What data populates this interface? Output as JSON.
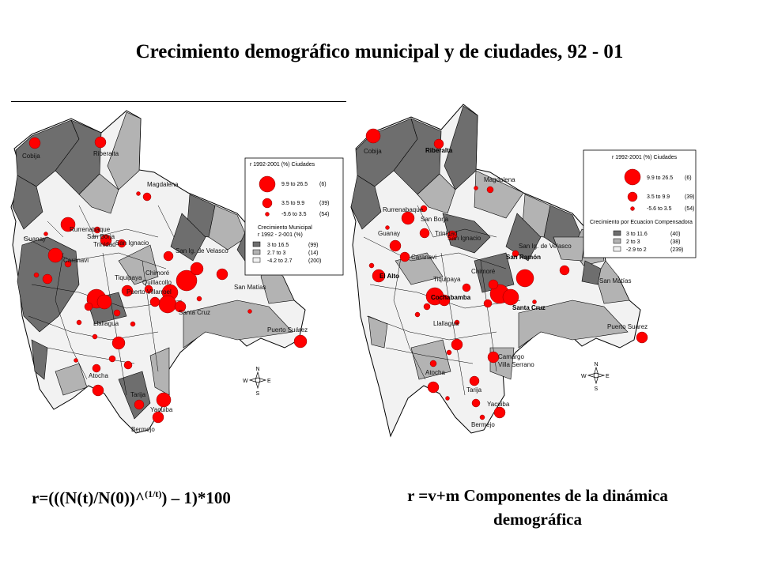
{
  "title": "Crecimiento demográfico municipal y de ciudades, 92 - 01",
  "formula": {
    "main": "r=(((N(t)/N(0))^",
    "exponent": "(1/t)",
    "tail": ") – 1)*100"
  },
  "components_caption": {
    "line1": "r =v+m Componentes de la dinámica",
    "line2": "demográfica"
  },
  "colors": {
    "dark": "#6e6e6e",
    "mid": "#b3b3b3",
    "light": "#f2f2f2",
    "dot": "#ff0000"
  },
  "map_left": {
    "cities": [
      "Cobija",
      "Riberalta",
      "Magdalena",
      "Rurrenabaque",
      "San Borja",
      "Guanay",
      "Trinidad",
      "San Ignacio",
      "Caranavi",
      "San Ig. de Velasco",
      "Chimoré",
      "Quillacollo",
      "Tiquipaya",
      "Puerto Villarroel",
      "San Matías",
      "Santa Cruz",
      "Llallagua",
      "Puerto Suárez",
      "Atocha",
      "Tarija",
      "Yacuiba",
      "Bermejo"
    ],
    "legend": {
      "cities_title": "r 1992-2001 (%) Ciudades",
      "cities_rows": [
        {
          "label": "9.9 to 26.5",
          "count": "(6)"
        },
        {
          "label": "3.5 to  9.9",
          "count": "(39)"
        },
        {
          "label": "-5.6 to  3.5",
          "count": "(54)"
        }
      ],
      "mun_title_1": "Crecimiento Municipal",
      "mun_title_2": "r 1992 - 2-001 (%)",
      "mun_rows": [
        {
          "label": "3    to 16.5",
          "count": "(99)"
        },
        {
          "label": "2.7 to  3",
          "count": "(14)"
        },
        {
          "label": "-4.2 to  2.7",
          "count": "(200)"
        }
      ]
    }
  },
  "map_right": {
    "cities": [
      "Cobija",
      "Riberalta",
      "Magdalena",
      "Rurrenabaque",
      "San Borja",
      "Guanay",
      "Trinidad",
      "San Ignacio",
      "Caranavi",
      "San Ig. de Velasco",
      "San Ramón",
      "El Alto",
      "Chimoré",
      "Cochabamba",
      "Tiquipaya",
      "Santa Cruz",
      "San Matías",
      "Llallagua",
      "Puerto Suárez",
      "Camargo",
      "Villa Serrano",
      "Atocha",
      "Tarija",
      "Yacuiba",
      "Bermejo"
    ],
    "legend": {
      "cities_title": "r 1992-2001 (%) Ciudades",
      "cities_rows": [
        {
          "label": "9.9 to 26.5",
          "count": "(6)"
        },
        {
          "label": "3.5 to  9.9",
          "count": "(39)"
        },
        {
          "label": "-5.6 to  3.5",
          "count": "(54)"
        }
      ],
      "mun_title_1": "Crecimiento por Ecuacion Compensadora",
      "mun_rows": [
        {
          "label": "3    to 11.6",
          "count": "(40)"
        },
        {
          "label": "2    to  3",
          "count": "(38)"
        },
        {
          "label": "-2.9 to  2",
          "count": "(239)"
        }
      ]
    }
  },
  "compass": {
    "n": "N",
    "s": "S",
    "e": "E",
    "w": "W"
  }
}
